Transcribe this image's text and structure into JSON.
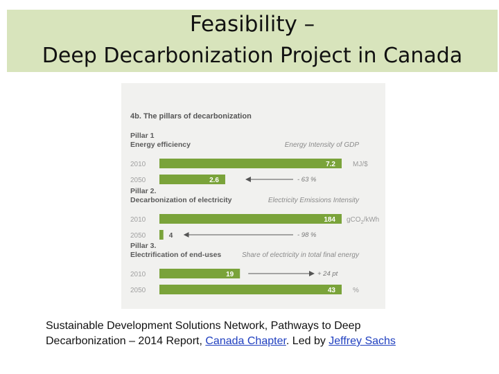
{
  "slide": {
    "title_line_1": "Feasibility –",
    "title_line_2": "Deep Decarbonization Project in Canada"
  },
  "figure": {
    "heading": "4b. The pillars of decarbonization"
  },
  "chart_data": {
    "type": "bar",
    "title": "4b. The pillars of decarbonization",
    "groups": [
      {
        "pillar": "Pillar 1",
        "name": "Energy efficiency",
        "metric": "Energy Intensity of GDP",
        "unit": "MJ/$",
        "change": "- 63 %",
        "bars": [
          {
            "year": "2010",
            "value": 7.2,
            "label": "7.2"
          },
          {
            "year": "2050",
            "value": 2.6,
            "label": "2.6"
          }
        ]
      },
      {
        "pillar": "Pillar 2.",
        "name": "Decarbonization of electricity",
        "metric": "Electricity Emissions Intensity",
        "unit": "gCO2/kWh",
        "change": "- 98 %",
        "bars": [
          {
            "year": "2010",
            "value": 184,
            "label": "184"
          },
          {
            "year": "2050",
            "value": 4,
            "label": "4"
          }
        ]
      },
      {
        "pillar": "Pillar 3.",
        "name": "Electrification of end-uses",
        "metric": "Share of electricity in total final energy",
        "unit": "%",
        "change": "+ 24 pt",
        "bars": [
          {
            "year": "2010",
            "value": 19,
            "label": "19"
          },
          {
            "year": "2050",
            "value": 43,
            "label": "43"
          }
        ]
      }
    ],
    "colors": {
      "bar": "#7aa33a",
      "panel": "#f1f1ef",
      "value_label": "#ffffff",
      "value_label_outside": "#555555",
      "arrow": "#555555"
    }
  },
  "caption": {
    "line1": "Sustainable Development Solutions Network, Pathways to Deep",
    "line2_prefix": "Decarbonization – 2014 Report, ",
    "link_chapter": "Canada Chapter",
    "line2_middle": ". Led by ",
    "link_author": "Jeffrey Sachs"
  }
}
